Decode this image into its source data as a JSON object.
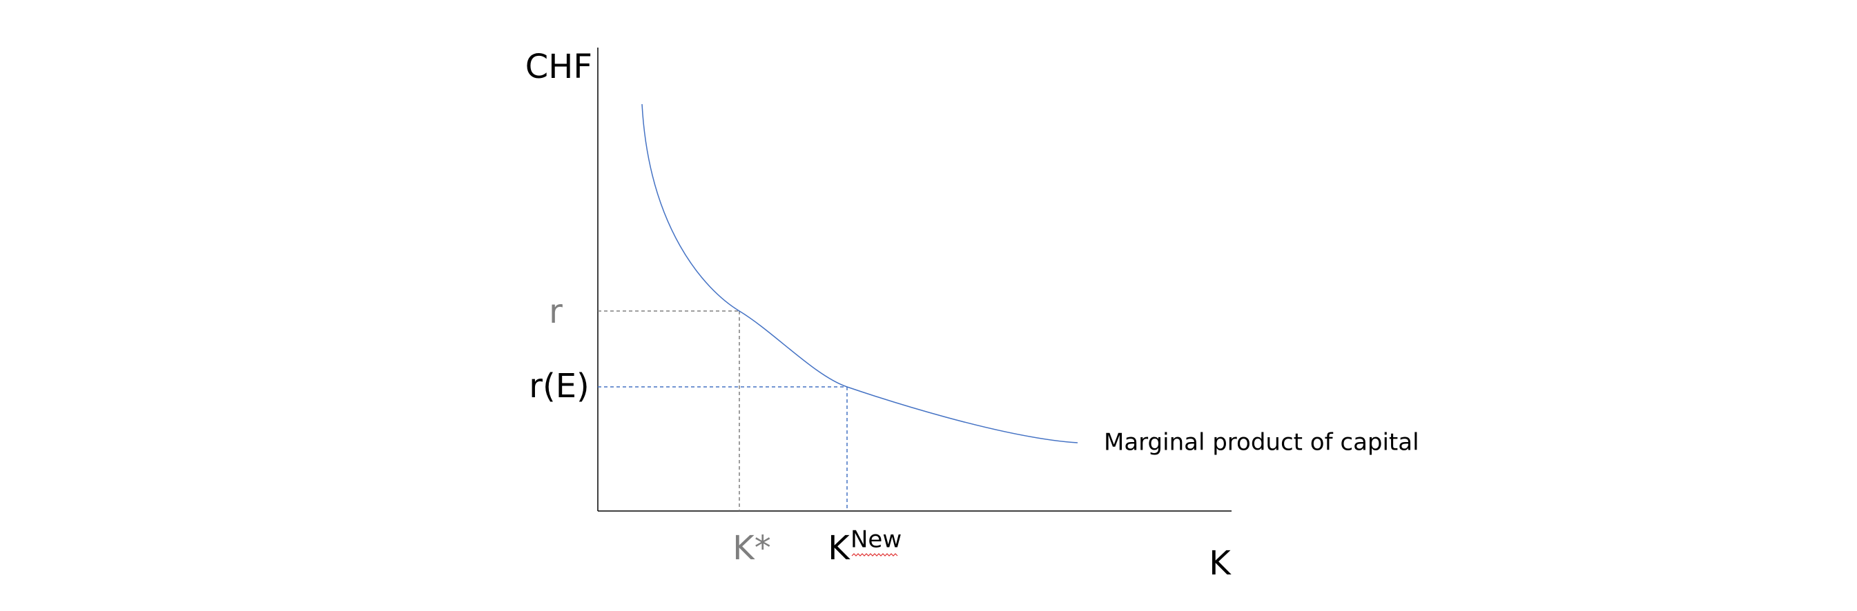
{
  "axes": {
    "y_label": "CHF",
    "x_label": "K"
  },
  "levels": {
    "r": "r",
    "r_e": "r(E)"
  },
  "quantities": {
    "k_star": "K*",
    "k_new": {
      "base": "K",
      "sup": "New"
    }
  },
  "curve": {
    "label": "Marginal product of capital"
  }
}
